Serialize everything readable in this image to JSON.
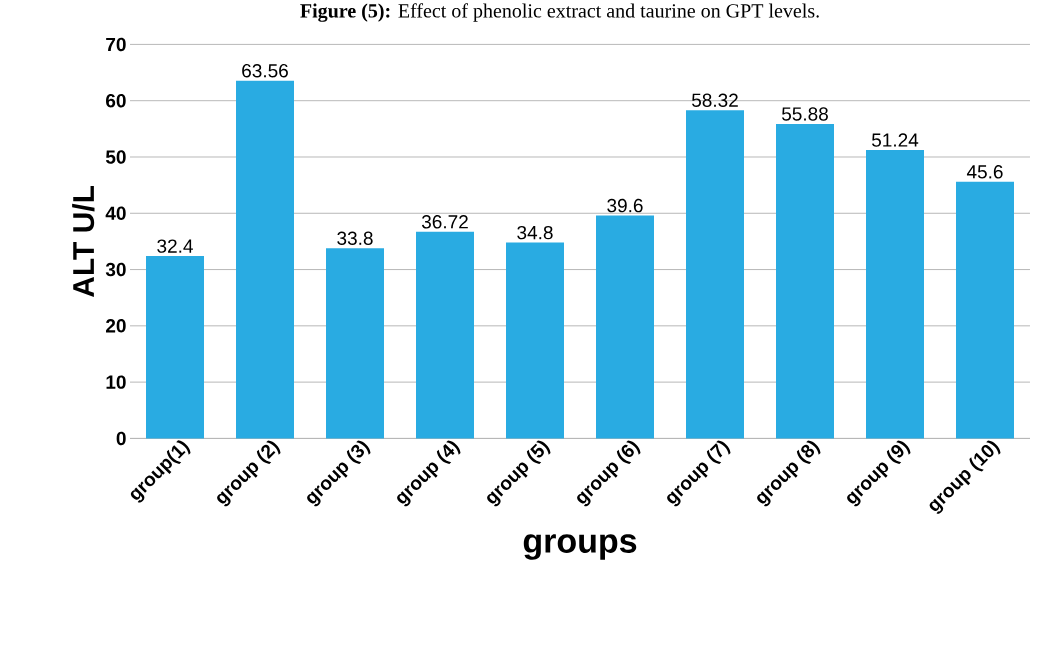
{
  "chart_data": {
    "type": "bar",
    "title": "**Figure (5):** Effect of phenolic extract and taurine on GPT levels.",
    "xlabel": "groups",
    "ylabel": "ALT U/L",
    "categories": [
      "group(1)",
      "group (2)",
      "group (3)",
      "group (4)",
      "group (5)",
      "group (6)",
      "group (7)",
      "group (8)",
      "group (9)",
      "group (10)"
    ],
    "values": [
      32.4,
      63.56,
      33.8,
      36.72,
      34.8,
      39.6,
      58.32,
      55.88,
      51.24,
      45.6
    ],
    "color": "#29abe2",
    "ylim": [
      0,
      70
    ],
    "yticks": [
      0,
      10,
      20,
      30,
      40,
      50,
      60,
      70
    ],
    "grid": "y",
    "data_labels": true
  }
}
